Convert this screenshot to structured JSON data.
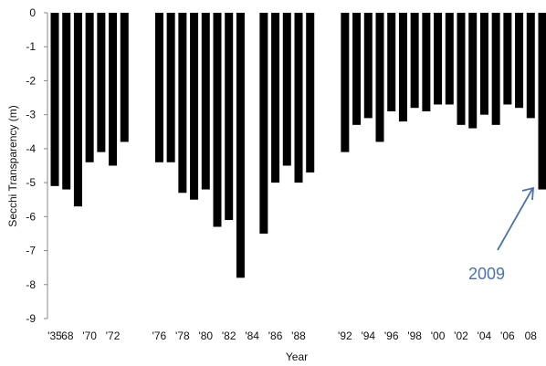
{
  "chart_data": {
    "type": "bar",
    "ylabel": "Secchi Transparency (m)",
    "xlabel": "Year",
    "ylim": [
      -9,
      0
    ],
    "yticks": [
      0,
      -1,
      -2,
      -3,
      -4,
      -5,
      -6,
      -7,
      -8,
      -9
    ],
    "grid": false,
    "bar_color": "#000000",
    "annotation": {
      "text": "2009",
      "color": "#4a72b0",
      "points_to": "2009"
    },
    "categories": [
      "'35",
      "'68",
      "'69",
      "'70",
      "'71",
      "'72",
      "'73",
      "'74",
      "'75",
      "'76",
      "'77",
      "'78",
      "'79",
      "'80",
      "'81",
      "'82",
      "'83",
      "'84",
      "'85",
      "'86",
      "'87",
      "'88",
      "'89",
      "'90",
      "'91",
      "'92",
      "'93",
      "'94",
      "'95",
      "'96",
      "'97",
      "'98",
      "'99",
      "'00",
      "'01",
      "'02",
      "'03",
      "'04",
      "'05",
      "'06",
      "'07",
      "'08",
      "2009"
    ],
    "tick_labels": [
      "'35",
      "'68",
      "",
      "'70",
      "",
      "'72",
      "",
      "",
      "",
      "'76",
      "",
      "'78",
      "",
      "'80",
      "",
      "'82",
      "",
      "'84",
      "",
      "'86",
      "",
      "'88",
      "",
      "",
      "",
      "'92",
      "",
      "'94",
      "",
      "'96",
      "",
      "'98",
      "",
      "'00",
      "",
      "'02",
      "",
      "'04",
      "",
      "'06",
      "",
      "08",
      ""
    ],
    "values": [
      -5.1,
      -5.2,
      -5.7,
      -4.4,
      -4.1,
      -4.5,
      -3.8,
      null,
      null,
      -4.4,
      -4.4,
      -5.3,
      -5.5,
      -5.2,
      -6.3,
      -6.1,
      -7.8,
      null,
      -6.5,
      -5.0,
      -4.5,
      -5.0,
      -4.7,
      null,
      null,
      -4.1,
      -3.3,
      -3.1,
      -3.8,
      -2.9,
      -3.2,
      -2.8,
      -2.9,
      -2.7,
      -2.7,
      -3.3,
      -3.4,
      -3.0,
      -3.3,
      -2.7,
      -2.8,
      -3.1,
      -5.2
    ]
  }
}
